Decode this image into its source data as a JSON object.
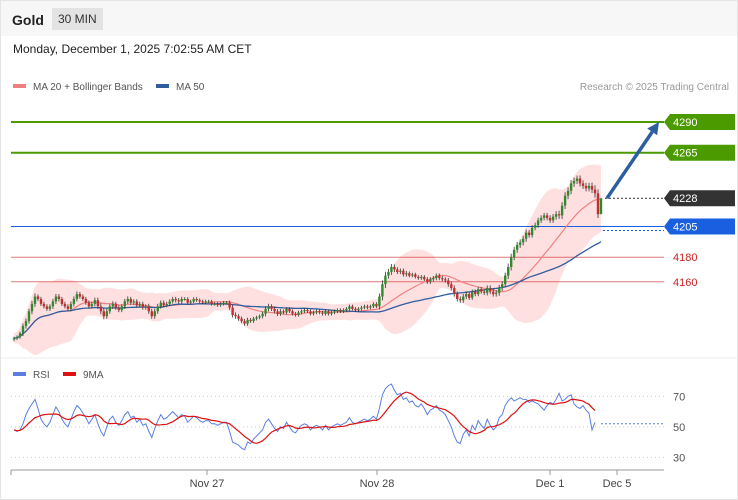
{
  "header": {
    "instrument": "Gold",
    "timeframe": "30 MIN",
    "timestamp": "Monday, December 1, 2025 7:02:55 AM CET"
  },
  "chart_data": [
    {
      "type": "line",
      "panel": "price",
      "credit": "Research © 2025 Trading Central",
      "legend": [
        {
          "label": "MA 20 + Bollinger Bands",
          "color": "#f08080"
        },
        {
          "label": "MA 50",
          "color": "#2f5d9e"
        }
      ],
      "legend_placement": "top-left",
      "x_ticks": [
        "Nov 27",
        "Nov 28",
        "Dec 1",
        "Dec 5"
      ],
      "levels": [
        {
          "value": 4290,
          "label": "4290",
          "color": "#4a9a00",
          "style": "solid",
          "tag": "filled"
        },
        {
          "value": 4265,
          "label": "4265",
          "color": "#4a9a00",
          "style": "solid",
          "tag": "filled"
        },
        {
          "value": 4228,
          "label": "4228",
          "color": "#333333",
          "style": "dotted",
          "tag": "filled"
        },
        {
          "value": 4205,
          "label": "4205",
          "color": "#1a5fe0",
          "style": "solid",
          "tag": "filled"
        },
        {
          "value": 4180,
          "label": "4180",
          "color": "#cc2222",
          "style": "solid",
          "tag": "text"
        },
        {
          "value": 4160,
          "label": "4160",
          "color": "#cc2222",
          "style": "solid",
          "tag": "text"
        }
      ],
      "ylim": [
        4111,
        4303
      ],
      "bullish_color": "#2e8b2e",
      "bearish_color": "#c03030",
      "band_color": "#ffd5d5",
      "ma20_color": "#f08080",
      "ma50_color": "#2f5d9e",
      "arrow": {
        "from": {
          "bar": 198,
          "value": 4228
        },
        "to": {
          "bar": 215,
          "value": 4290
        },
        "color": "#2d5fa0"
      },
      "closes": [
        4114,
        4115,
        4118,
        4124,
        4128,
        4136,
        4142,
        4148,
        4146,
        4142,
        4140,
        4138,
        4140,
        4144,
        4148,
        4146,
        4142,
        4140,
        4138,
        4142,
        4146,
        4150,
        4148,
        4146,
        4143,
        4140,
        4142,
        4145,
        4140,
        4136,
        4132,
        4136,
        4140,
        4142,
        4139,
        4137,
        4140,
        4144,
        4146,
        4143,
        4144,
        4141,
        4142,
        4139,
        4140,
        4136,
        4132,
        4136,
        4140,
        4143,
        4141,
        4142,
        4144,
        4146,
        4145,
        4144,
        4146,
        4146,
        4143,
        4144,
        4146,
        4145,
        4144,
        4143,
        4144,
        4144,
        4142,
        4142,
        4141,
        4142,
        4143,
        4143,
        4139,
        4133,
        4132,
        4130,
        4128,
        4126,
        4129,
        4128,
        4130,
        4131,
        4132,
        4134,
        4138,
        4140,
        4138,
        4136,
        4134,
        4136,
        4135,
        4138,
        4136,
        4134,
        4133,
        4135,
        4136,
        4137,
        4136,
        4134,
        4135,
        4136,
        4135,
        4134,
        4136,
        4134,
        4135,
        4136,
        4137,
        4136,
        4137,
        4138,
        4140,
        4138,
        4137,
        4138,
        4139,
        4140,
        4139,
        4140,
        4142,
        4140,
        4148,
        4158,
        4165,
        4168,
        4172,
        4170,
        4168,
        4169,
        4166,
        4167,
        4165,
        4166,
        4164,
        4163,
        4164,
        4162,
        4160,
        4162,
        4163,
        4165,
        4163,
        4162,
        4161,
        4158,
        4155,
        4150,
        4146,
        4145,
        4148,
        4150,
        4147,
        4152,
        4150,
        4154,
        4152,
        4151,
        4155,
        4152,
        4150,
        4151,
        4155,
        4158,
        4165,
        4172,
        4180,
        4186,
        4190,
        4192,
        4195,
        4200,
        4198,
        4204,
        4206,
        4210,
        4212,
        4214,
        4212,
        4210,
        4213,
        4215,
        4214,
        4222,
        4230,
        4234,
        4240,
        4242,
        4244,
        4240,
        4238,
        4236,
        4238,
        4235,
        4232,
        4215,
        4228
      ],
      "bar_ranges": [
        4,
        4,
        4,
        6,
        6,
        6,
        7,
        7,
        5,
        5,
        5,
        5,
        5,
        6,
        6,
        6,
        5,
        5,
        5,
        6,
        6,
        6,
        5,
        5,
        5,
        5,
        5,
        6,
        6,
        7,
        7,
        6,
        6,
        6,
        5,
        5,
        5,
        6,
        6,
        5,
        5,
        5,
        5,
        5,
        5,
        6,
        6,
        6,
        6,
        5,
        5,
        5,
        5,
        5,
        5,
        5,
        5,
        4,
        4,
        4,
        4,
        4,
        4,
        4,
        4,
        4,
        4,
        4,
        4,
        4,
        4,
        4,
        5,
        6,
        6,
        5,
        5,
        5,
        5,
        4,
        4,
        4,
        4,
        5,
        6,
        6,
        5,
        5,
        5,
        5,
        4,
        4,
        4,
        4,
        4,
        4,
        4,
        4,
        4,
        4,
        4,
        4,
        4,
        4,
        4,
        4,
        4,
        4,
        4,
        4,
        4,
        4,
        4,
        4,
        4,
        4,
        4,
        4,
        4,
        4,
        4,
        4,
        7,
        9,
        9,
        7,
        7,
        6,
        5,
        5,
        5,
        5,
        4,
        4,
        4,
        4,
        4,
        4,
        5,
        5,
        5,
        5,
        5,
        5,
        5,
        6,
        6,
        6,
        6,
        6,
        6,
        6,
        5,
        5,
        5,
        5,
        5,
        5,
        6,
        6,
        6,
        6,
        7,
        7,
        7,
        8,
        8,
        7,
        7,
        7,
        7,
        7,
        6,
        6,
        6,
        6,
        6,
        6,
        6,
        6,
        6,
        7,
        8,
        8,
        8,
        8,
        8,
        8,
        7,
        7,
        7,
        7,
        7,
        8,
        10,
        9
      ]
    },
    {
      "type": "line",
      "panel": "rsi",
      "legend": [
        {
          "label": "RSI",
          "color": "#5b7fe0"
        },
        {
          "label": "9MA",
          "color": "#dd1111"
        }
      ],
      "legend_placement": "top-left",
      "ylim": [
        25,
        82
      ],
      "y_ticks": [
        70,
        50,
        30
      ],
      "current_level": 52,
      "rsi_color": "#5b7fe0",
      "ma_color": "#dd1111",
      "values": [
        48,
        47,
        48,
        52,
        58,
        62,
        65,
        68,
        62,
        55,
        52,
        50,
        53,
        58,
        63,
        60,
        55,
        52,
        50,
        55,
        60,
        64,
        62,
        59,
        56,
        52,
        55,
        58,
        52,
        47,
        44,
        50,
        55,
        57,
        53,
        51,
        54,
        58,
        60,
        56,
        57,
        53,
        55,
        51,
        52,
        47,
        43,
        49,
        54,
        58,
        55,
        56,
        58,
        60,
        58,
        56,
        58,
        57,
        53,
        55,
        57,
        56,
        54,
        53,
        54,
        54,
        52,
        52,
        51,
        52,
        53,
        53,
        47,
        40,
        39,
        38,
        36,
        35,
        40,
        39,
        42,
        44,
        46,
        48,
        53,
        55,
        52,
        49,
        47,
        50,
        49,
        53,
        50,
        47,
        46,
        49,
        51,
        52,
        51,
        48,
        50,
        51,
        50,
        48,
        51,
        48,
        50,
        51,
        52,
        51,
        52,
        53,
        56,
        53,
        52,
        53,
        54,
        55,
        54,
        55,
        57,
        55,
        62,
        71,
        75,
        77,
        78,
        74,
        71,
        72,
        68,
        69,
        66,
        67,
        64,
        63,
        65,
        62,
        58,
        61,
        62,
        64,
        61,
        60,
        58,
        54,
        50,
        44,
        40,
        39,
        45,
        48,
        44,
        51,
        48,
        54,
        51,
        49,
        55,
        51,
        48,
        50,
        56,
        58,
        64,
        67,
        69,
        67,
        68,
        69,
        68,
        68,
        66,
        67,
        66,
        65,
        63,
        61,
        64,
        66,
        65,
        68,
        72,
        67,
        68,
        70,
        71,
        65,
        63,
        62,
        64,
        61,
        59,
        48,
        53
      ]
    }
  ]
}
